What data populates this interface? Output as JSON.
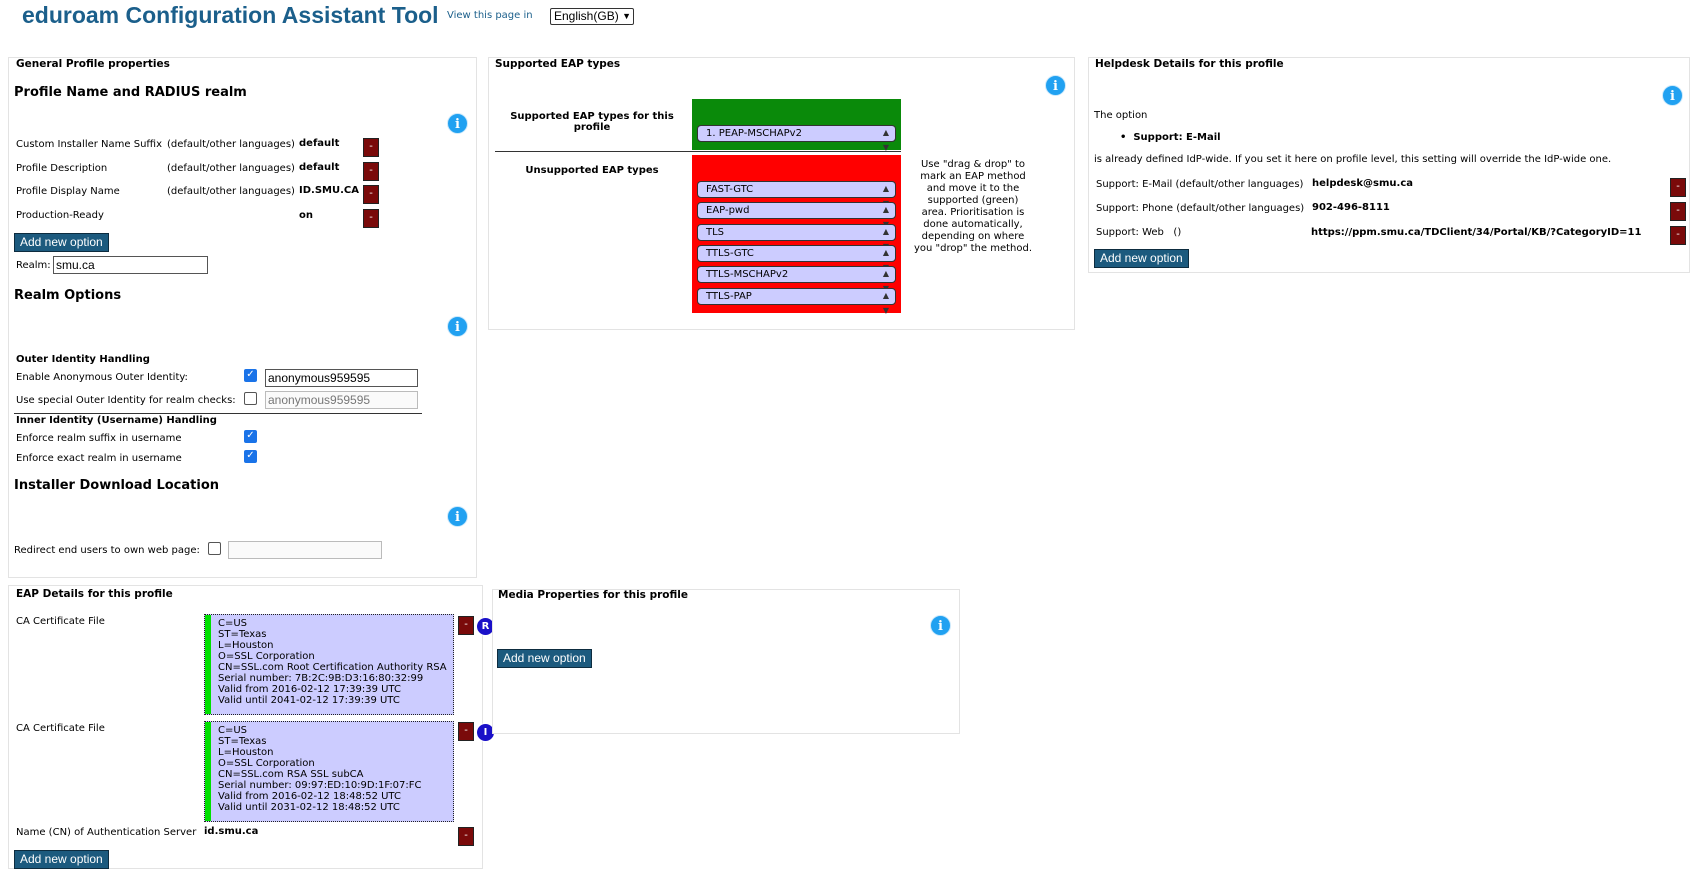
{
  "header": {
    "title": "eduroam Configuration Assistant Tool",
    "lang_label": "View this page in",
    "lang_selected": "English(GB)"
  },
  "general": {
    "legend": "General Profile properties",
    "section_profile": "Profile Name and RADIUS realm",
    "rows": [
      {
        "label": "Custom Installer Name Suffix",
        "lang": "(default/other languages)",
        "value": "default"
      },
      {
        "label": "Profile Description",
        "lang": "(default/other languages)",
        "value": "default"
      },
      {
        "label": "Profile Display Name",
        "lang": "(default/other languages)",
        "value": "ID.SMU.CA"
      },
      {
        "label": "Production-Ready",
        "lang": "",
        "value": "on"
      }
    ],
    "add_option": "Add new option",
    "realm_label": "Realm:",
    "realm_value": "smu.ca",
    "section_realm_options": "Realm Options",
    "outer_heading": "Outer Identity Handling",
    "anon_label": "Enable Anonymous Outer Identity:",
    "anon_value": "anonymous959595",
    "special_label": "Use special Outer Identity for realm checks:",
    "special_value": "anonymous959595",
    "inner_heading": "Inner Identity (Username) Handling",
    "suffix_label": "Enforce realm suffix in username",
    "exact_label": "Enforce exact realm in username",
    "section_download": "Installer Download Location",
    "redirect_label": "Redirect end users to own web page:"
  },
  "eap": {
    "legend": "Supported EAP types",
    "supported_label": "Supported EAP types for this profile",
    "supported": [
      "1. PEAP-MSCHAPv2"
    ],
    "unsupported_label": "Unsupported EAP types",
    "unsupported": [
      "FAST-GTC",
      "EAP-pwd",
      "TLS",
      "TTLS-GTC",
      "TTLS-MSCHAPv2",
      "TTLS-PAP"
    ],
    "help_lines": [
      "Use \"drag & drop\" to",
      "mark an EAP method",
      "and move it to the",
      "supported (green)",
      "area. Prioritisation is",
      "done automatically,",
      "depending on where",
      "you \"drop\" the method."
    ]
  },
  "helpdesk": {
    "legend": "Helpdesk Details for this profile",
    "option_intro": "The option",
    "option_item": "Support: E-Mail",
    "option_note": "is already defined IdP-wide. If you set it here on profile level, this setting will override the IdP-wide one.",
    "rows": [
      {
        "label": "Support: E-Mail (default/other languages)",
        "value": "helpdesk@smu.ca"
      },
      {
        "label": "Support: Phone (default/other languages)",
        "value": "902-496-8111"
      },
      {
        "label": "Support: Web   ()",
        "value": "https://ppm.smu.ca/TDClient/34/Portal/KB/?CategoryID=11"
      }
    ],
    "add_option": "Add new option"
  },
  "eap_details": {
    "legend": "EAP Details for this profile",
    "certs": [
      {
        "label": "CA Certificate File",
        "badge": "R",
        "lines": [
          "C=US",
          "ST=Texas",
          "L=Houston",
          "O=SSL Corporation",
          "CN=SSL.com Root Certification Authority RSA",
          "Serial number: 7B:2C:9B:D3:16:80:32:99",
          "Valid from 2016-02-12 17:39:39 UTC",
          "Valid until 2041-02-12 17:39:39 UTC"
        ]
      },
      {
        "label": "CA Certificate File",
        "badge": "I",
        "lines": [
          "C=US",
          "ST=Texas",
          "L=Houston",
          "O=SSL Corporation",
          "CN=SSL.com RSA SSL subCA",
          "Serial number: 09:97:ED:10:9D:1F:07:FC",
          "Valid from 2016-02-12 18:48:52 UTC",
          "Valid until 2031-02-12 18:48:52 UTC"
        ]
      }
    ],
    "server_label": "Name (CN) of Authentication Server",
    "server_value": "id.smu.ca",
    "add_option": "Add new option"
  },
  "media": {
    "legend": "Media Properties for this profile",
    "add_option": "Add new option"
  },
  "icons": {
    "info": "info-icon",
    "minus": "-",
    "check": "✓"
  },
  "colors": {
    "title": "#1b5f8b",
    "button": "#1c5a7e",
    "delete": "#7a0a0a",
    "supported_area": "#0a8a0a",
    "unsupported_area": "#ff0000",
    "eap_item": "#ccccff",
    "info": "#21a1f1"
  }
}
